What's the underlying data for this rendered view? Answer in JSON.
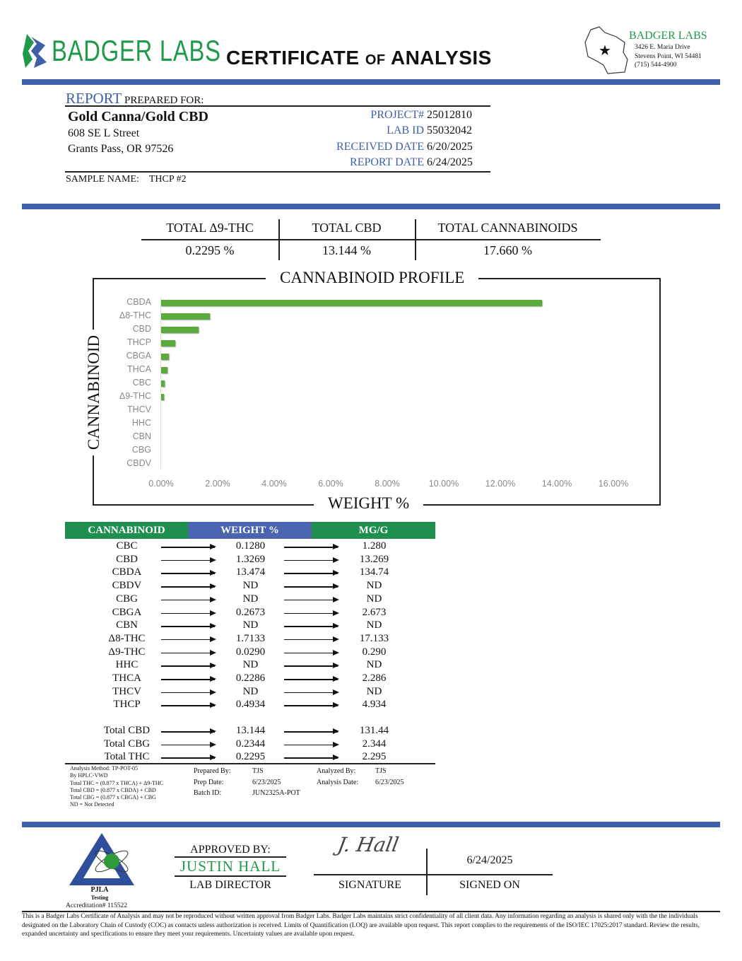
{
  "header": {
    "logo_text": "BADGER LABS",
    "title_a": "CERTIFICATE",
    "title_of": "OF",
    "title_b": "ANALYSIS",
    "address": {
      "name": "BADGER LABS",
      "street": "3426 E. Maria Drive",
      "city": "Stevens Point, WI 54481",
      "phone": "(715) 544-4900"
    }
  },
  "report": {
    "report_word": "REPORT",
    "prepared_for": "PREPARED FOR:",
    "client": "Gold Canna/Gold CBD",
    "street": "608 SE L Street",
    "city": "Grants Pass, OR 97526",
    "fields": [
      {
        "label": "PROJECT#",
        "value": "25012810"
      },
      {
        "label": "LAB ID",
        "value": "55032042"
      },
      {
        "label": "RECEIVED DATE",
        "value": "6/20/2025"
      },
      {
        "label": "REPORT DATE",
        "value": "6/24/2025"
      }
    ],
    "sample_label": "SAMPLE NAME:",
    "sample_name": "THCP #2"
  },
  "summary": [
    {
      "label": "TOTAL Δ9-THC",
      "value": "0.2295 %"
    },
    {
      "label": "TOTAL CBD",
      "value": "13.144 %"
    },
    {
      "label": "TOTAL CANNABINOIDS",
      "value": "17.660 %"
    }
  ],
  "chart_data": {
    "type": "bar",
    "orientation": "horizontal",
    "title": "CANNABINOID PROFILE",
    "xlabel": "WEIGHT %",
    "ylabel": "CANNABINOID",
    "categories": [
      "CBDA",
      "Δ8-THC",
      "CBD",
      "THCP",
      "CBGA",
      "THCA",
      "CBC",
      "Δ9-THC",
      "THCV",
      "HHC",
      "CBN",
      "CBG",
      "CBDV"
    ],
    "values": [
      13.474,
      1.7133,
      1.3269,
      0.4934,
      0.2673,
      0.2286,
      0.128,
      0.029,
      0,
      0,
      0,
      0,
      0
    ],
    "xlim": [
      0,
      16
    ],
    "xticks": [
      "0.00%",
      "2.00%",
      "4.00%",
      "6.00%",
      "8.00%",
      "10.00%",
      "12.00%",
      "14.00%",
      "16.00%"
    ],
    "bar_color": "#5aab3c",
    "grid": false
  },
  "table": {
    "headers": [
      "CANNABINOID",
      "WEIGHT %",
      "MG/G"
    ],
    "header_colors": [
      "#1e8f4e",
      "#4a64b0",
      "#1e8f4e"
    ],
    "rows": [
      [
        "CBC",
        "0.1280",
        "1.280"
      ],
      [
        "CBD",
        "1.3269",
        "13.269"
      ],
      [
        "CBDA",
        "13.474",
        "134.74"
      ],
      [
        "CBDV",
        "ND",
        "ND"
      ],
      [
        "CBG",
        "ND",
        "ND"
      ],
      [
        "CBGA",
        "0.2673",
        "2.673"
      ],
      [
        "CBN",
        "ND",
        "ND"
      ],
      [
        "Δ8-THC",
        "1.7133",
        "17.133"
      ],
      [
        "Δ9-THC",
        "0.0290",
        "0.290"
      ],
      [
        "HHC",
        "ND",
        "ND"
      ],
      [
        "THCA",
        "0.2286",
        "2.286"
      ],
      [
        "THCV",
        "ND",
        "ND"
      ],
      [
        "THCP",
        "0.4934",
        "4.934"
      ]
    ],
    "totals": [
      [
        "Total CBD",
        "13.144",
        "131.44"
      ],
      [
        "Total CBG",
        "0.2344",
        "2.344"
      ],
      [
        "Total THC",
        "0.2295",
        "2.295"
      ]
    ]
  },
  "notes": {
    "method": [
      "Analysis Method: TP-POT-05",
      "By HPLC-VWD",
      "Total THC = (0.877 x  THCA) + Δ9-THC",
      "Total CBD = (0.877 x  CBDA) + CBD",
      "Total CBG = (0.877 x  CBGA) + CBG",
      "ND = Not Detected"
    ],
    "prep": [
      [
        "Prepared By:",
        "TJS"
      ],
      [
        "Prep Date:",
        "6/23/2025"
      ],
      [
        "Batch ID:",
        "JUN2325A-POT"
      ]
    ],
    "analysis": [
      [
        "Analyzed By:",
        "TJS"
      ],
      [
        "Analysis Date:",
        "6/23/2025"
      ]
    ]
  },
  "approval": {
    "approved_by": "APPROVED BY:",
    "name": "JUSTIN HALL",
    "role": "LAB DIRECTOR",
    "signature_label": "SIGNATURE",
    "signature_text": "J. Hall",
    "date": "6/24/2025",
    "signed_on": "SIGNED ON",
    "pjla": "PJLA",
    "pjla_sub": "Testing",
    "accreditation": "Accreditation# 115522"
  },
  "disclaimer": "This is a Badger Labs Certificate of Analysis and may not be reproduced without written approval from Badger Labs. Badger Labs maintains strict confidentiality of all client data. Any information regarding an analysis is shared only with the the individuals designated on the Laboratory Chain of Custody (COC) as contacts unless authorization is received. Limits of Quantification (LOQ) are available upon request. This report complies to the requirements of the ISO/IEC 17025:2017 standard. Review the results, expanded uncertainty and specifications to ensure they meet your requirements. Uncertainty values are available upon request."
}
